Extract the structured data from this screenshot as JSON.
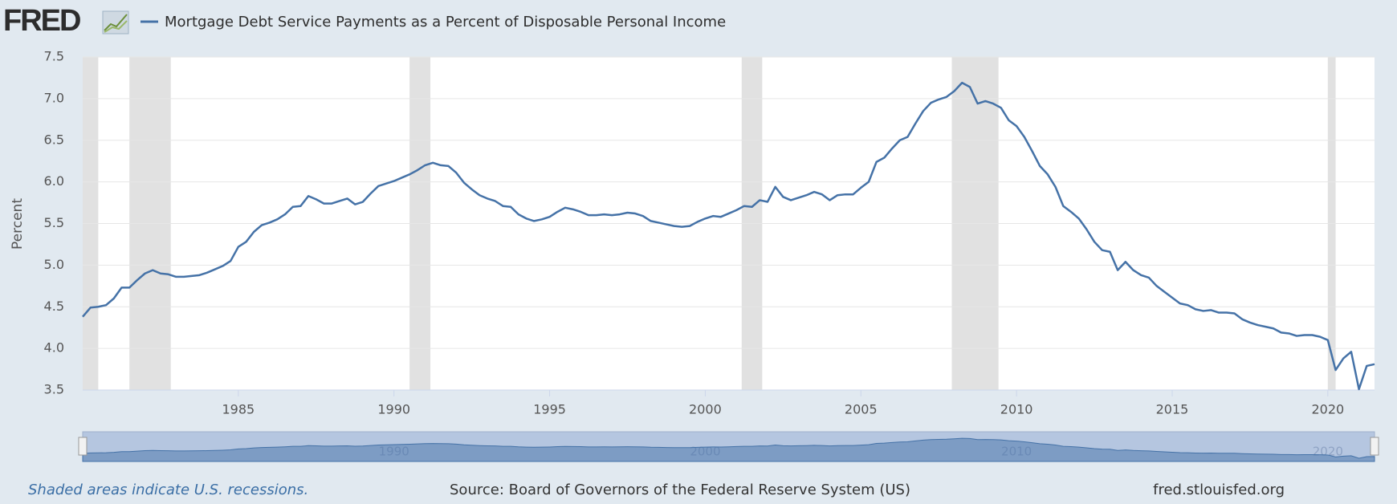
{
  "logo": "FRED",
  "chart_data": {
    "type": "line",
    "title": "Mortgage Debt Service Payments as a Percent of Disposable Personal Income",
    "y_label": "Percent",
    "x": [
      1980,
      1980.25,
      1980.5,
      1980.75,
      1981,
      1981.25,
      1981.5,
      1981.75,
      1982,
      1982.25,
      1982.5,
      1982.75,
      1983,
      1983.25,
      1983.5,
      1983.75,
      1984,
      1984.25,
      1984.5,
      1984.75,
      1985,
      1985.25,
      1985.5,
      1985.75,
      1986,
      1986.25,
      1986.5,
      1986.75,
      1987,
      1987.25,
      1987.5,
      1987.75,
      1988,
      1988.25,
      1988.5,
      1988.75,
      1989,
      1989.25,
      1989.5,
      1989.75,
      1990,
      1990.25,
      1990.5,
      1990.75,
      1991,
      1991.25,
      1991.5,
      1991.75,
      1992,
      1992.25,
      1992.5,
      1992.75,
      1993,
      1993.25,
      1993.5,
      1993.75,
      1994,
      1994.25,
      1994.5,
      1994.75,
      1995,
      1995.25,
      1995.5,
      1995.75,
      1996,
      1996.25,
      1996.5,
      1996.75,
      1997,
      1997.25,
      1997.5,
      1997.75,
      1998,
      1998.25,
      1998.5,
      1998.75,
      1999,
      1999.25,
      1999.5,
      1999.75,
      2000,
      2000.25,
      2000.5,
      2000.75,
      2001,
      2001.25,
      2001.5,
      2001.75,
      2002,
      2002.25,
      2002.5,
      2002.75,
      2003,
      2003.25,
      2003.5,
      2003.75,
      2004,
      2004.25,
      2004.5,
      2004.75,
      2005,
      2005.25,
      2005.5,
      2005.75,
      2006,
      2006.25,
      2006.5,
      2006.75,
      2007,
      2007.25,
      2007.5,
      2007.75,
      2008,
      2008.25,
      2008.5,
      2008.75,
      2009,
      2009.25,
      2009.5,
      2009.75,
      2010,
      2010.25,
      2010.5,
      2010.75,
      2011,
      2011.25,
      2011.5,
      2011.75,
      2012,
      2012.25,
      2012.5,
      2012.75,
      2013,
      2013.25,
      2013.5,
      2013.75,
      2014,
      2014.25,
      2014.5,
      2014.75,
      2015,
      2015.25,
      2015.5,
      2015.75,
      2016,
      2016.25,
      2016.5,
      2016.75,
      2017,
      2017.25,
      2017.5,
      2017.75,
      2018,
      2018.25,
      2018.5,
      2018.75,
      2019,
      2019.25,
      2019.5,
      2019.75,
      2020,
      2020.25,
      2020.5,
      2020.75,
      2021,
      2021.25,
      2021.5
    ],
    "series": [
      {
        "name": "Mortgage Debt Service Payments as a Percent of Disposable Personal Income",
        "color": "#4572a7",
        "values": [
          4.38,
          4.49,
          4.5,
          4.52,
          4.6,
          4.73,
          4.73,
          4.82,
          4.9,
          4.94,
          4.9,
          4.89,
          4.86,
          4.86,
          4.87,
          4.88,
          4.91,
          4.95,
          4.99,
          5.05,
          5.22,
          5.28,
          5.4,
          5.48,
          5.51,
          5.55,
          5.61,
          5.7,
          5.71,
          5.83,
          5.79,
          5.74,
          5.74,
          5.77,
          5.8,
          5.73,
          5.76,
          5.86,
          5.95,
          5.98,
          6.01,
          6.05,
          6.09,
          6.14,
          6.2,
          6.23,
          6.2,
          6.19,
          6.11,
          5.99,
          5.91,
          5.84,
          5.8,
          5.77,
          5.71,
          5.7,
          5.61,
          5.56,
          5.53,
          5.55,
          5.58,
          5.64,
          5.69,
          5.67,
          5.64,
          5.6,
          5.6,
          5.61,
          5.6,
          5.61,
          5.63,
          5.62,
          5.59,
          5.53,
          5.51,
          5.49,
          5.47,
          5.46,
          5.47,
          5.52,
          5.56,
          5.59,
          5.58,
          5.62,
          5.66,
          5.71,
          5.7,
          5.78,
          5.76,
          5.94,
          5.82,
          5.78,
          5.81,
          5.84,
          5.88,
          5.85,
          5.78,
          5.84,
          5.85,
          5.85,
          5.93,
          6.0,
          6.24,
          6.29,
          6.4,
          6.5,
          6.54,
          6.7,
          6.85,
          6.95,
          6.99,
          7.02,
          7.09,
          7.19,
          7.14,
          6.94,
          6.97,
          6.94,
          6.89,
          6.74,
          6.67,
          6.54,
          6.37,
          6.19,
          6.09,
          5.94,
          5.71,
          5.64,
          5.56,
          5.43,
          5.28,
          5.18,
          5.16,
          4.94,
          5.04,
          4.94,
          4.88,
          4.85,
          4.75,
          4.68,
          4.61,
          4.54,
          4.52,
          4.47,
          4.45,
          4.46,
          4.43,
          4.43,
          4.42,
          4.35,
          4.31,
          4.28,
          4.26,
          4.24,
          4.19,
          4.18,
          4.15,
          4.16,
          4.16,
          4.14,
          4.1,
          3.74,
          3.88,
          3.96,
          3.51,
          3.79,
          3.81
        ]
      }
    ],
    "recessions": [
      [
        1980,
        1980.5
      ],
      [
        1981.5,
        1982.83
      ],
      [
        1990.5,
        1991.17
      ],
      [
        2001.17,
        2001.83
      ],
      [
        2007.92,
        2009.42
      ],
      [
        2020,
        2020.25
      ]
    ],
    "xlim": [
      1980,
      2021.5
    ],
    "xticks": [
      1985,
      1990,
      1995,
      2000,
      2005,
      2010,
      2015,
      2020
    ],
    "ylim": [
      3.5,
      7.5
    ],
    "yticks": [
      3.5,
      {
        "value": 4,
        "label": "4.0"
      },
      4.5,
      {
        "value": 5,
        "label": "5.0"
      },
      5.5,
      {
        "value": 6,
        "label": "6.0"
      },
      6.5,
      {
        "value": 7,
        "label": "7.0"
      },
      7.5
    ],
    "grid": true,
    "navigator_ticks": [
      1990,
      2000,
      2010,
      2020
    ]
  },
  "footer": {
    "note": "Shaded areas indicate U.S. recessions.",
    "source": "Source: Board of Governors of the Federal Reserve System (US)",
    "site": "fred.stlouisfed.org"
  }
}
